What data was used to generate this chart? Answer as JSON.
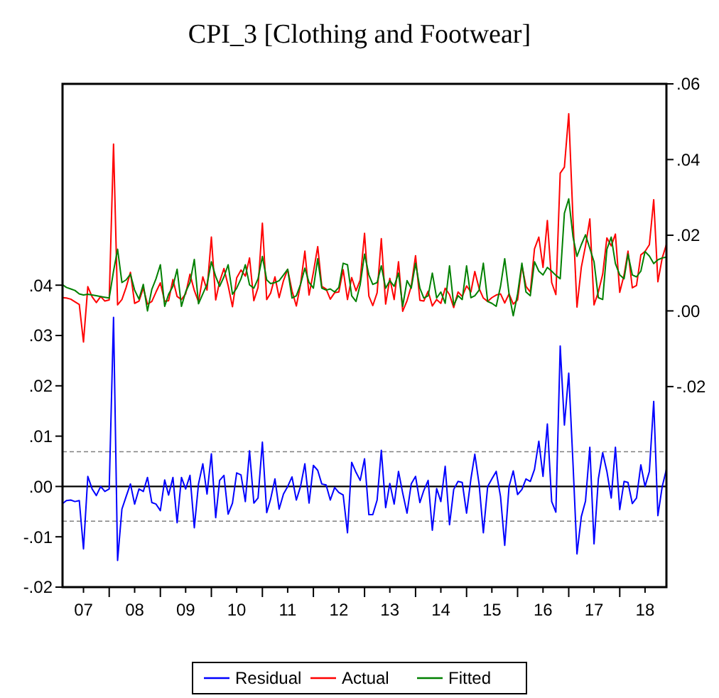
{
  "chart_data": {
    "type": "line",
    "title": "CPI_3 [Clothing and Footwear]",
    "x": [
      "2007-02",
      "2007-03",
      "2007-04",
      "2007-05",
      "2007-06",
      "2007-07",
      "2007-08",
      "2007-09",
      "2007-10",
      "2007-11",
      "2007-12",
      "2008-01",
      "2008-02",
      "2008-03",
      "2008-04",
      "2008-05",
      "2008-06",
      "2008-07",
      "2008-08",
      "2008-09",
      "2008-10",
      "2008-11",
      "2008-12",
      "2009-01",
      "2009-02",
      "2009-03",
      "2009-04",
      "2009-05",
      "2009-06",
      "2009-07",
      "2009-08",
      "2009-09",
      "2009-10",
      "2009-11",
      "2009-12",
      "2010-01",
      "2010-02",
      "2010-03",
      "2010-04",
      "2010-05",
      "2010-06",
      "2010-07",
      "2010-08",
      "2010-09",
      "2010-10",
      "2010-11",
      "2010-12",
      "2011-01",
      "2011-02",
      "2011-03",
      "2011-04",
      "2011-05",
      "2011-06",
      "2011-07",
      "2011-08",
      "2011-09",
      "2011-10",
      "2011-11",
      "2011-12",
      "2012-01",
      "2012-02",
      "2012-03",
      "2012-04",
      "2012-05",
      "2012-06",
      "2012-07",
      "2012-08",
      "2012-09",
      "2012-10",
      "2012-11",
      "2012-12",
      "2013-01",
      "2013-02",
      "2013-03",
      "2013-04",
      "2013-05",
      "2013-06",
      "2013-07",
      "2013-08",
      "2013-09",
      "2013-10",
      "2013-11",
      "2013-12",
      "2014-01",
      "2014-02",
      "2014-03",
      "2014-04",
      "2014-05",
      "2014-06",
      "2014-07",
      "2014-08",
      "2014-09",
      "2014-10",
      "2014-11",
      "2014-12",
      "2015-01",
      "2015-02",
      "2015-03",
      "2015-04",
      "2015-05",
      "2015-06",
      "2015-07",
      "2015-08",
      "2015-09",
      "2015-10",
      "2015-11",
      "2015-12",
      "2016-01",
      "2016-02",
      "2016-03",
      "2016-04",
      "2016-05",
      "2016-06",
      "2016-07",
      "2016-08",
      "2016-09",
      "2016-10",
      "2016-11",
      "2016-12",
      "2017-01",
      "2017-02",
      "2017-03",
      "2017-04",
      "2017-05",
      "2017-06",
      "2017-07",
      "2017-08",
      "2017-09",
      "2017-10",
      "2017-11",
      "2017-12",
      "2018-01",
      "2018-02",
      "2018-03",
      "2018-04",
      "2018-05",
      "2018-06",
      "2018-07",
      "2018-08",
      "2018-09",
      "2018-10",
      "2018-11",
      "2018-12"
    ],
    "series": [
      {
        "name": "Residual",
        "color": "#0000ff",
        "values": [
          -0.0034,
          -0.0028,
          -0.0027,
          -0.003,
          -0.0028,
          -0.0124,
          0.002,
          -0.0005,
          -0.0018,
          0,
          -0.001,
          -0.0005,
          0.0336,
          -0.0147,
          -0.0045,
          -0.002,
          0.0005,
          -0.0035,
          -0.0005,
          -0.001,
          0.0018,
          -0.0032,
          -0.0035,
          -0.0048,
          0.0013,
          -0.0017,
          0.0018,
          -0.0072,
          0.0018,
          -0.0005,
          0.0022,
          -0.0082,
          0.0005,
          0.0045,
          -0.0015,
          0.0065,
          -0.0062,
          0.0012,
          0.0022,
          -0.0055,
          -0.0033,
          0.0027,
          0.0023,
          -0.003,
          0.0071,
          -0.0033,
          -0.0023,
          0.0088,
          -0.0052,
          -0.0025,
          0.0015,
          -0.0045,
          -0.0015,
          0,
          0.0019,
          -0.0027,
          0,
          0.0045,
          -0.0033,
          0.0042,
          0.0032,
          0.0005,
          0.0003,
          -0.0027,
          -0.0002,
          -0.0012,
          -0.0017,
          -0.0092,
          0.0048,
          0.0028,
          0.0012,
          0.0055,
          -0.0056,
          -0.0056,
          -0.0027,
          0.0072,
          -0.0042,
          0.0006,
          -0.0035,
          0.003,
          -0.0013,
          -0.0053,
          0.0005,
          0.002,
          -0.0032,
          -0.0008,
          0.0012,
          -0.0087,
          -0.0004,
          -0.003,
          0.004,
          -0.0076,
          -0.0006,
          0.001,
          0.0008,
          -0.0053,
          0.0015,
          0.0064,
          0.0004,
          -0.0092,
          0,
          0.0015,
          0.003,
          -0.002,
          -0.0117,
          0,
          0.0031,
          -0.0016,
          -0.0006,
          0.0015,
          0.001,
          0.0034,
          0.009,
          0.002,
          0.0124,
          -0.003,
          -0.0051,
          0.0279,
          0.0122,
          0.0225,
          0.0043,
          -0.0134,
          -0.006,
          -0.0029,
          0.0078,
          -0.0114,
          0.0015,
          0.0067,
          0.003,
          -0.0023,
          0.0078,
          -0.0046,
          0.001,
          0.0008,
          -0.0034,
          -0.0023,
          0.0043,
          0,
          0.003,
          0.0169,
          -0.0058,
          0,
          0.0034
        ]
      },
      {
        "name": "Actual",
        "color": "#ff0000",
        "axis": "y2",
        "values": [
          0.0035,
          0.0034,
          0.0031,
          0.0024,
          0.0017,
          -0.0082,
          0.0064,
          0.0037,
          0.0022,
          0.0038,
          0.0026,
          0.0029,
          0.0441,
          0.0016,
          0.003,
          0.0062,
          0.0102,
          0.002,
          0.0026,
          0.006,
          0.0018,
          0.0025,
          0.005,
          0.0074,
          0.0025,
          0.0027,
          0.0083,
          0.0038,
          0.003,
          0.0045,
          0.0097,
          0.0054,
          0.0024,
          0.009,
          0.0055,
          0.0195,
          0.0029,
          0.0077,
          0.0112,
          0.0067,
          0.0011,
          0.0087,
          0.0108,
          0.0092,
          0.014,
          0.0027,
          0.0062,
          0.0232,
          0.003,
          0.0047,
          0.009,
          0.0035,
          0.008,
          0.011,
          0.0053,
          0.0013,
          0.007,
          0.0158,
          0.0042,
          0.0102,
          0.017,
          0.0065,
          0.0058,
          0.0031,
          0.0048,
          0.005,
          0.0109,
          0.003,
          0.0088,
          0.0053,
          0.0082,
          0.0205,
          0.0039,
          0.0014,
          0.0048,
          0.0191,
          0.0018,
          0.0086,
          0.003,
          0.013,
          -0.0001,
          0.0027,
          0.0065,
          0.0146,
          0.0028,
          0.0026,
          0.0052,
          0.0013,
          0.003,
          0.002,
          0.006,
          0.0043,
          0.0009,
          0.005,
          0.0038,
          0.0066,
          0.005,
          0.0104,
          0.0059,
          0.0034,
          0.0025,
          0.0035,
          0.0042,
          0.0045,
          0.0021,
          0.0045,
          0.0018,
          0.0029,
          0.012,
          0.0065,
          0.005,
          0.0164,
          0.0195,
          0.0115,
          0.0239,
          0.0075,
          0.0043,
          0.0364,
          0.038,
          0.0521,
          0.0238,
          0.001,
          0.0115,
          0.0172,
          0.0243,
          0.0016,
          0.005,
          0.0097,
          0.0193,
          0.0172,
          0.0203,
          0.0049,
          0.0095,
          0.0158,
          0.0061,
          0.0067,
          0.0148,
          0.0157,
          0.0175,
          0.0294,
          0.0077,
          0.014,
          0.0176
        ]
      },
      {
        "name": "Fitted",
        "color": "#008000",
        "axis": "y2",
        "values": [
          0.0069,
          0.0062,
          0.0058,
          0.0054,
          0.0045,
          0.0042,
          0.0044,
          0.0042,
          0.004,
          0.0038,
          0.0036,
          0.0034,
          0.0105,
          0.0163,
          0.0075,
          0.0082,
          0.0097,
          0.0055,
          0.0031,
          0.007,
          0,
          0.0057,
          0.0085,
          0.0122,
          0.0012,
          0.0044,
          0.0065,
          0.011,
          0.0012,
          0.005,
          0.0075,
          0.0136,
          0.0019,
          0.0045,
          0.007,
          0.013,
          0.0091,
          0.0065,
          0.009,
          0.0122,
          0.0044,
          0.006,
          0.0085,
          0.0122,
          0.0069,
          0.006,
          0.0085,
          0.0144,
          0.0082,
          0.0072,
          0.0075,
          0.008,
          0.0095,
          0.011,
          0.0034,
          0.004,
          0.007,
          0.0113,
          0.0075,
          0.006,
          0.0138,
          0.006,
          0.0055,
          0.0058,
          0.005,
          0.0062,
          0.0126,
          0.0122,
          0.004,
          0.0025,
          0.007,
          0.015,
          0.0095,
          0.007,
          0.0075,
          0.0119,
          0.006,
          0.008,
          0.0065,
          0.01,
          0.0012,
          0.008,
          0.006,
          0.0126,
          0.006,
          0.0034,
          0.004,
          0.01,
          0.0034,
          0.005,
          0.002,
          0.0119,
          0.0015,
          0.004,
          0.003,
          0.0119,
          0.0035,
          0.004,
          0.0055,
          0.0126,
          0.0025,
          0.002,
          0.0012,
          0.0065,
          0.0138,
          0.0045,
          -0.0013,
          0.0045,
          0.0126,
          0.005,
          0.004,
          0.013,
          0.0105,
          0.0095,
          0.0115,
          0.0105,
          0.0094,
          0.0085,
          0.0258,
          0.0296,
          0.0195,
          0.0144,
          0.0175,
          0.0201,
          0.0165,
          0.013,
          0.0035,
          0.003,
          0.0163,
          0.0195,
          0.0125,
          0.0095,
          0.0085,
          0.015,
          0.0095,
          0.009,
          0.0105,
          0.0157,
          0.0145,
          0.0125,
          0.0135,
          0.014,
          0.0142
        ]
      }
    ],
    "xlim": [
      "2007-02",
      "2018-12"
    ],
    "xticks": [
      {
        "value": "2007-07",
        "label": "07"
      },
      {
        "value": "2008-01",
        "label": null
      },
      {
        "value": "2008-07",
        "label": "08"
      },
      {
        "value": "2009-01",
        "label": null
      },
      {
        "value": "2009-07",
        "label": "09"
      },
      {
        "value": "2010-01",
        "label": null
      },
      {
        "value": "2010-07",
        "label": "10"
      },
      {
        "value": "2011-01",
        "label": null
      },
      {
        "value": "2011-07",
        "label": "11"
      },
      {
        "value": "2012-01",
        "label": null
      },
      {
        "value": "2012-07",
        "label": "12"
      },
      {
        "value": "2013-01",
        "label": null
      },
      {
        "value": "2013-07",
        "label": "13"
      },
      {
        "value": "2014-01",
        "label": null
      },
      {
        "value": "2014-07",
        "label": "14"
      },
      {
        "value": "2015-01",
        "label": null
      },
      {
        "value": "2015-07",
        "label": "15"
      },
      {
        "value": "2016-01",
        "label": null
      },
      {
        "value": "2016-07",
        "label": "16"
      },
      {
        "value": "2017-01",
        "label": null
      },
      {
        "value": "2017-07",
        "label": "17"
      },
      {
        "value": "2018-01",
        "label": null
      },
      {
        "value": "2018-07",
        "label": "18"
      }
    ],
    "ylim": [
      -0.02,
      0.08
    ],
    "yticks": [
      {
        "value": -0.02,
        "label": "-.02"
      },
      {
        "value": -0.01,
        "label": "-.01"
      },
      {
        "value": 0,
        "label": ".00"
      },
      {
        "value": 0.01,
        "label": ".01"
      },
      {
        "value": 0.02,
        "label": ".02"
      },
      {
        "value": 0.03,
        "label": ".03"
      },
      {
        "value": 0.04,
        "label": ".04"
      }
    ],
    "y2lim": [
      -0.073,
      0.06
    ],
    "y2ticks": [
      {
        "value": -0.02,
        "label": "-.02"
      },
      {
        "value": 0,
        "label": ".00"
      },
      {
        "value": 0.02,
        "label": ".02"
      },
      {
        "value": 0.04,
        "label": ".04"
      },
      {
        "value": 0.06,
        "label": ".06"
      }
    ],
    "ref_lines": [
      {
        "axis": "y",
        "value": 0,
        "color": "#000000",
        "line_style": "solid"
      },
      {
        "axis": "y",
        "value": 0.0069,
        "color": "#808080",
        "line_style": "dashed"
      },
      {
        "axis": "y",
        "value": -0.0069,
        "color": "#808080",
        "line_style": "dashed"
      }
    ],
    "grid": false,
    "legend": "bottom"
  }
}
